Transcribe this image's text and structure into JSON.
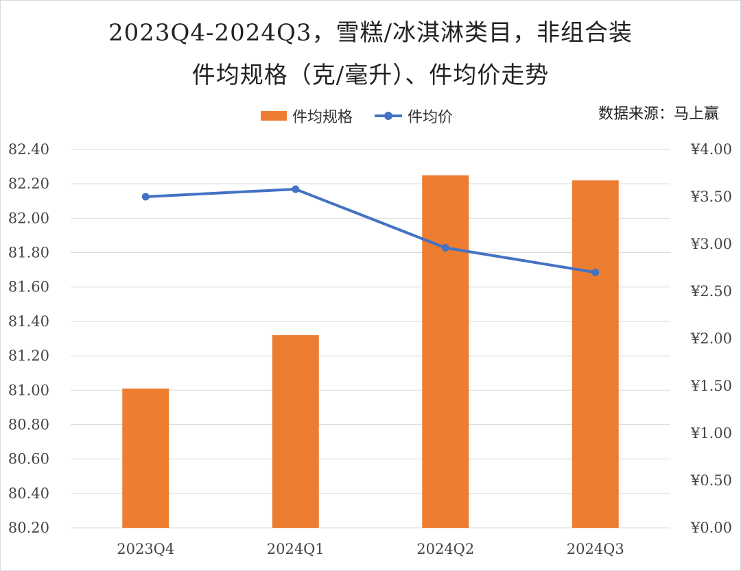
{
  "chart_data": {
    "type": "bar",
    "title": "2023Q4-2024Q3，雪糕/冰淇淋类目，非组合装",
    "subtitle": "件均规格（克/毫升）、件均价走势",
    "source_note": "数据来源：马上赢",
    "categories": [
      "2023Q4",
      "2024Q1",
      "2024Q2",
      "2024Q3"
    ],
    "series": [
      {
        "name": "件均规格",
        "type": "bar",
        "axis": "left",
        "color": "#ED7D31",
        "values": [
          81.01,
          81.32,
          82.25,
          82.22
        ]
      },
      {
        "name": "件均价",
        "type": "line",
        "axis": "right",
        "color": "#4472C4",
        "values": [
          3.5,
          3.58,
          2.96,
          2.7
        ]
      }
    ],
    "y_left": {
      "ylim": [
        80.2,
        82.4
      ],
      "ticks": [
        "80.20",
        "80.40",
        "80.60",
        "80.80",
        "81.00",
        "81.20",
        "81.40",
        "81.60",
        "81.80",
        "82.00",
        "82.20",
        "82.40"
      ]
    },
    "y_right": {
      "ylim": [
        0,
        4
      ],
      "ticks": [
        "¥0.00",
        "¥0.50",
        "¥1.00",
        "¥1.50",
        "¥2.00",
        "¥2.50",
        "¥3.00",
        "¥3.50",
        "¥4.00"
      ]
    },
    "grid": true,
    "legend_position": "top"
  }
}
